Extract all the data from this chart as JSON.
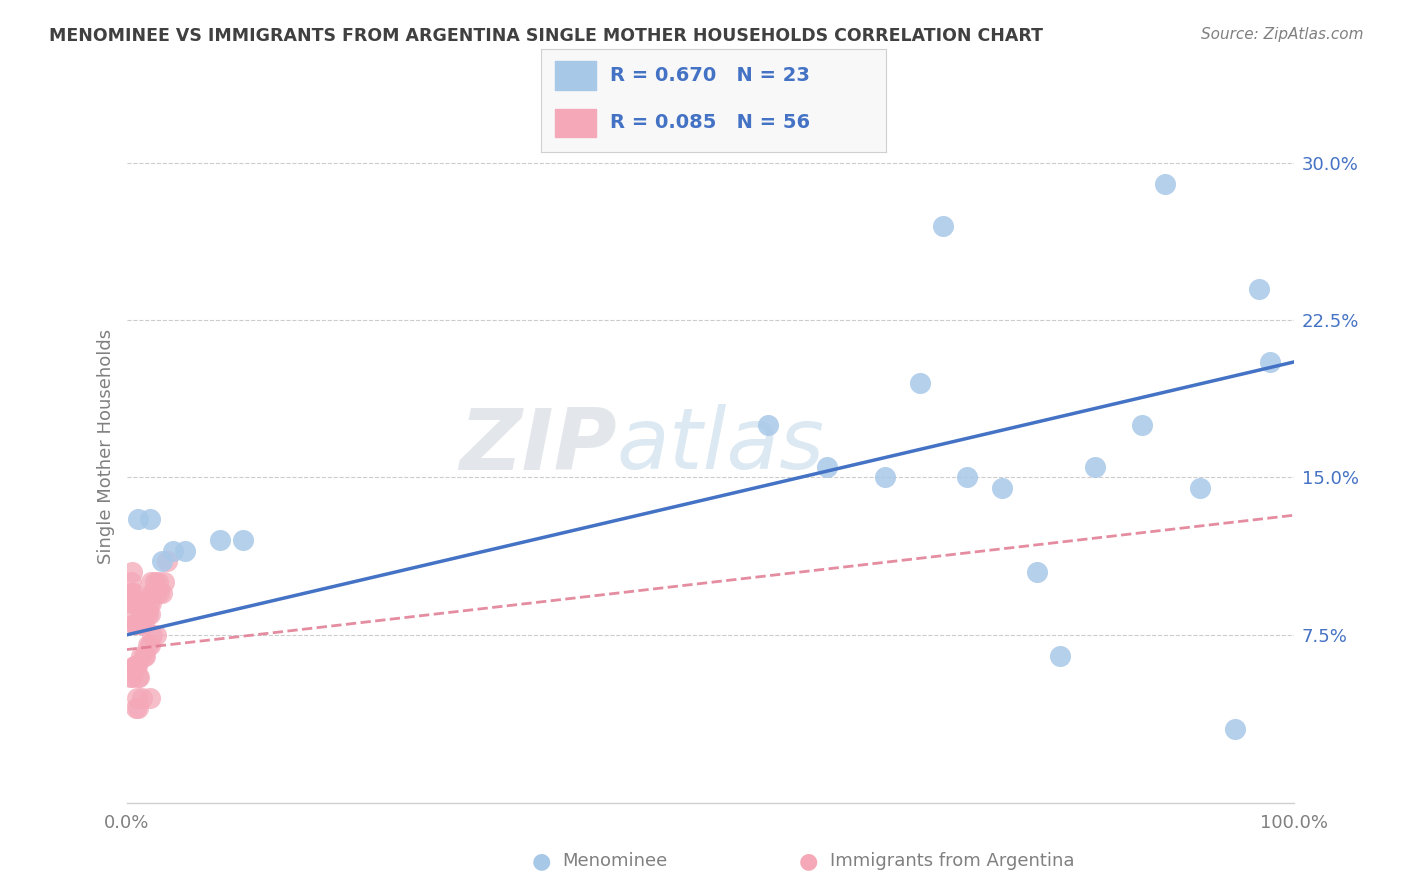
{
  "title": "MENOMINEE VS IMMIGRANTS FROM ARGENTINA SINGLE MOTHER HOUSEHOLDS CORRELATION CHART",
  "source": "Source: ZipAtlas.com",
  "ylabel": "Single Mother Households",
  "xlim": [
    0.0,
    1.0
  ],
  "ylim": [
    -0.005,
    0.335
  ],
  "yticks": [
    0.075,
    0.15,
    0.225,
    0.3
  ],
  "ytick_labels": [
    "7.5%",
    "15.0%",
    "22.5%",
    "30.0%"
  ],
  "xtick_labels": [
    "0.0%",
    "100.0%"
  ],
  "xticks": [
    0.0,
    1.0
  ],
  "menominee_R": 0.67,
  "menominee_N": 23,
  "argentina_R": 0.085,
  "argentina_N": 56,
  "menominee_color": "#a8c8e8",
  "argentina_color": "#f4a8b8",
  "menominee_line_color": "#4472c4",
  "argentina_line_color": "#e07890",
  "grid_color": "#cccccc",
  "title_color": "#404040",
  "label_color": "#808080",
  "axis_color": "#d0d0d0",
  "menominee_line_x0": 0.0,
  "menominee_line_y0": 0.075,
  "menominee_line_x1": 1.0,
  "menominee_line_y1": 0.205,
  "argentina_line_x0": 0.0,
  "argentina_line_y0": 0.068,
  "argentina_line_x1": 1.0,
  "argentina_line_y1": 0.132,
  "menominee_scatter_x": [
    0.01,
    0.02,
    0.03,
    0.04,
    0.05,
    0.08,
    0.1,
    0.55,
    0.6,
    0.65,
    0.7,
    0.75,
    0.78,
    0.8,
    0.83,
    0.87,
    0.89,
    0.92,
    0.95,
    0.97,
    0.98,
    0.68,
    0.72
  ],
  "menominee_scatter_y": [
    0.13,
    0.13,
    0.11,
    0.115,
    0.115,
    0.12,
    0.12,
    0.175,
    0.155,
    0.15,
    0.27,
    0.145,
    0.105,
    0.065,
    0.155,
    0.175,
    0.29,
    0.145,
    0.03,
    0.24,
    0.205,
    0.195,
    0.15
  ],
  "argentina_scatter_x": [
    0.003,
    0.004,
    0.004,
    0.005,
    0.005,
    0.006,
    0.006,
    0.007,
    0.007,
    0.008,
    0.009,
    0.01,
    0.01,
    0.011,
    0.012,
    0.012,
    0.013,
    0.014,
    0.015,
    0.015,
    0.016,
    0.017,
    0.018,
    0.019,
    0.02,
    0.021,
    0.021,
    0.022,
    0.023,
    0.024,
    0.025,
    0.027,
    0.028,
    0.03,
    0.032,
    0.004,
    0.005,
    0.006,
    0.007,
    0.008,
    0.009,
    0.01,
    0.011,
    0.012,
    0.015,
    0.016,
    0.018,
    0.02,
    0.022,
    0.025,
    0.013,
    0.008,
    0.009,
    0.01,
    0.02,
    0.035
  ],
  "argentina_scatter_y": [
    0.095,
    0.09,
    0.1,
    0.095,
    0.105,
    0.08,
    0.095,
    0.08,
    0.09,
    0.085,
    0.08,
    0.08,
    0.09,
    0.08,
    0.08,
    0.09,
    0.085,
    0.085,
    0.08,
    0.09,
    0.085,
    0.085,
    0.085,
    0.09,
    0.085,
    0.09,
    0.1,
    0.095,
    0.095,
    0.1,
    0.095,
    0.1,
    0.095,
    0.095,
    0.1,
    0.055,
    0.055,
    0.06,
    0.06,
    0.06,
    0.06,
    0.055,
    0.055,
    0.065,
    0.065,
    0.065,
    0.07,
    0.07,
    0.075,
    0.075,
    0.045,
    0.04,
    0.045,
    0.04,
    0.045,
    0.11
  ]
}
